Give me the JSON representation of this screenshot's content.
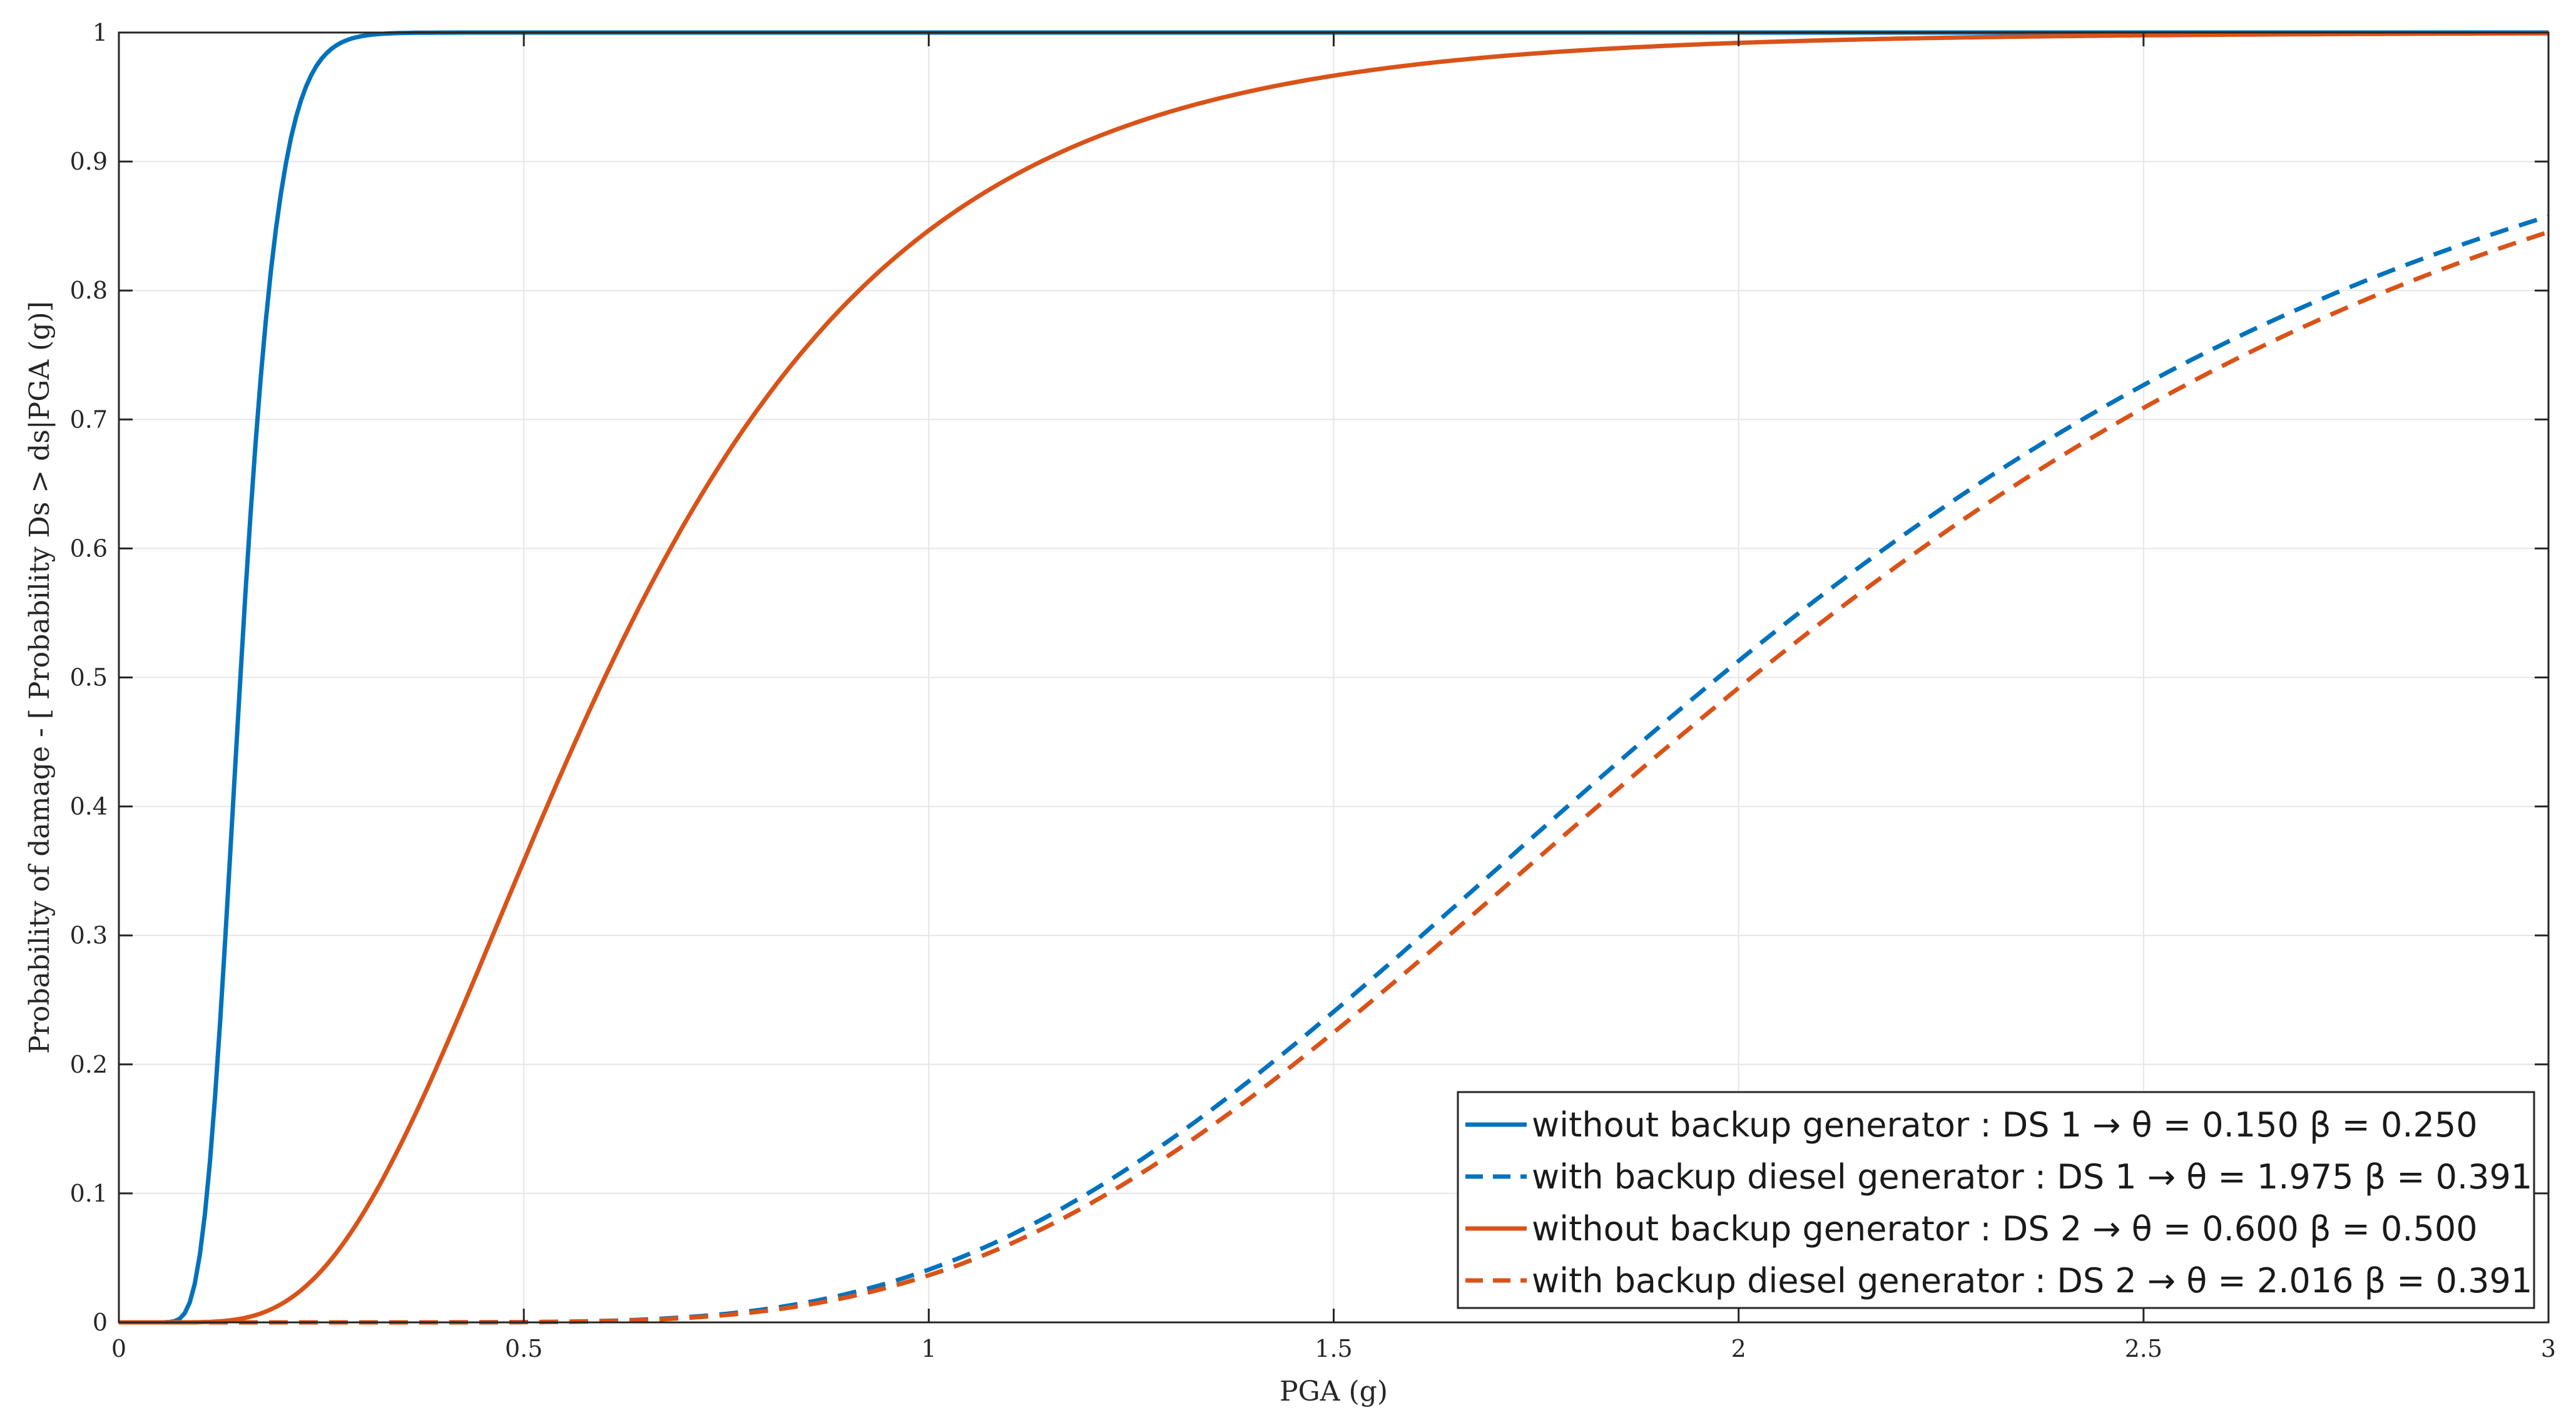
{
  "chart_data": {
    "type": "line",
    "xlabel": "PGA (g)",
    "ylabel": "Probability of damage - [ Probability Ds > ds|PGA (g)]",
    "xlim": [
      0,
      3
    ],
    "ylim": [
      0,
      1
    ],
    "xticks": [
      "0",
      "0.5",
      "1",
      "1.5",
      "2",
      "2.5",
      "3"
    ],
    "yticks": [
      "0",
      "0.1",
      "0.2",
      "0.3",
      "0.4",
      "0.5",
      "0.6",
      "0.7",
      "0.8",
      "0.9",
      "1"
    ],
    "grid": true,
    "legend_position": "bottom-right",
    "x_step": 0.025,
    "series": [
      {
        "name": "without backup generator : DS 1 → θ = 0.150   β = 0.250",
        "color": "#0072BD",
        "dash": "solid",
        "model": "lognormal-cdf",
        "theta": 0.15,
        "beta": 0.25
      },
      {
        "name": "with backup diesel generator : DS 1 → θ = 1.975   β = 0.391",
        "color": "#0072BD",
        "dash": "dashed",
        "model": "lognormal-cdf",
        "theta": 1.975,
        "beta": 0.391
      },
      {
        "name": "without backup generator : DS 2 → θ = 0.600   β = 0.500",
        "color": "#D95319",
        "dash": "solid",
        "model": "lognormal-cdf",
        "theta": 0.6,
        "beta": 0.5
      },
      {
        "name": "with backup diesel generator : DS 2 → θ = 2.016   β = 0.391",
        "color": "#D95319",
        "dash": "dashed",
        "model": "lognormal-cdf",
        "theta": 2.016,
        "beta": 0.391
      }
    ]
  }
}
